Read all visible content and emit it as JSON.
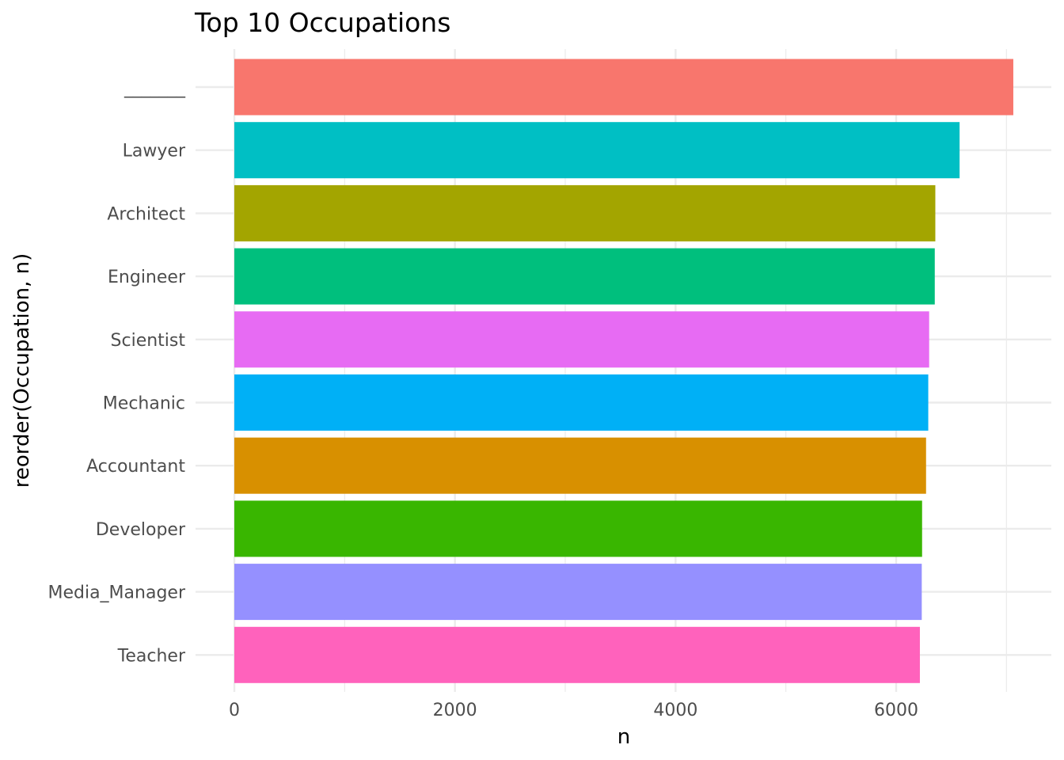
{
  "chart_data": {
    "type": "bar",
    "orientation": "horizontal",
    "title": "Top 10 Occupations",
    "xlabel": "n",
    "ylabel": "reorder(Occupation, n)",
    "categories": [
      "_______",
      "Lawyer",
      "Architect",
      "Engineer",
      "Scientist",
      "Mechanic",
      "Accountant",
      "Developer",
      "Media_Manager",
      "Teacher"
    ],
    "values": [
      7062,
      6575,
      6355,
      6350,
      6299,
      6291,
      6271,
      6235,
      6232,
      6215
    ],
    "colors": [
      "#F8766D",
      "#00BFC4",
      "#A3A500",
      "#00BF7D",
      "#E76BF3",
      "#00B0F6",
      "#D89000",
      "#39B600",
      "#9590FF",
      "#FF62BC"
    ],
    "xlim": [
      0,
      7062
    ],
    "xticks": [
      0,
      2000,
      4000,
      6000
    ],
    "grid": true,
    "legend": "none"
  }
}
